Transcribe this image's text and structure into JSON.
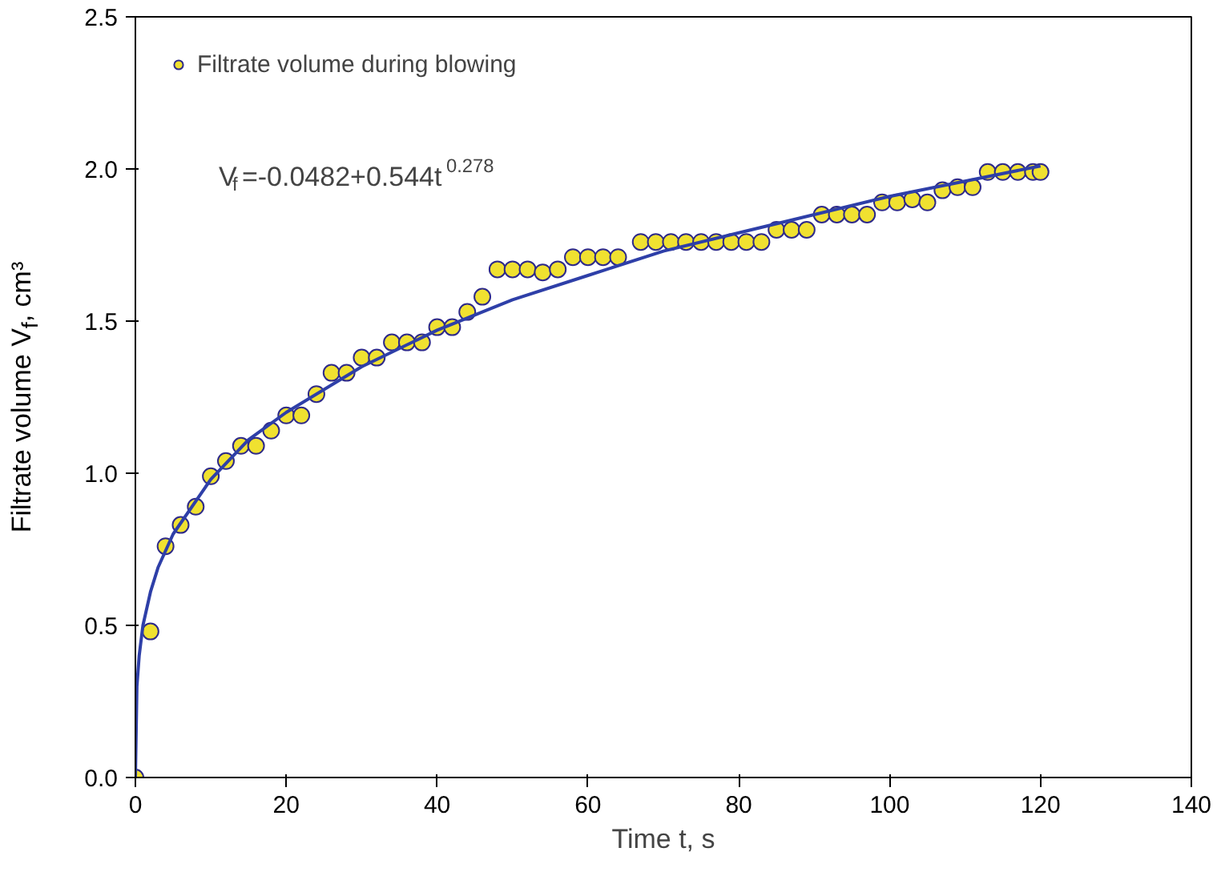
{
  "chart_data": {
    "type": "scatter",
    "xlabel": "Time t, s",
    "ylabel": "Filtrate volume V$_{f}$, cm³",
    "xlim": [
      0,
      140
    ],
    "ylim": [
      0,
      2.5
    ],
    "xticks": [
      0,
      20,
      40,
      60,
      80,
      100,
      120,
      140
    ],
    "yticks": [
      {
        "value": 0,
        "label": "0.0"
      },
      {
        "value": 0.5,
        "label": "0.5"
      },
      {
        "value": 1,
        "label": "1.0"
      },
      {
        "value": 1.5,
        "label": "1.5"
      },
      {
        "value": 2,
        "label": "2.0"
      },
      {
        "value": 2.5,
        "label": "2.5"
      }
    ],
    "grid": false,
    "legend": "top left",
    "marker": "circle",
    "annotations": [
      "V$_{f}$=-0.0482+0.544t$^{0.278}$"
    ],
    "series": [
      {
        "name": "Filtrate volume during blowing",
        "color": "#f0e130",
        "x": [
          0,
          2,
          4,
          6,
          8,
          10,
          12,
          14,
          16,
          18,
          20,
          22,
          24,
          26,
          28,
          30,
          32,
          34,
          36,
          38,
          40,
          42,
          44,
          46,
          48,
          50,
          52,
          54,
          56,
          58,
          60,
          62,
          64,
          67,
          69,
          71,
          73,
          75,
          77,
          79,
          81,
          83,
          85,
          87,
          89,
          91,
          93,
          95,
          97,
          99,
          101,
          103,
          105,
          107,
          109,
          111,
          113,
          115,
          117,
          119,
          120
        ],
        "values": [
          0,
          0.48,
          0.76,
          0.83,
          0.89,
          0.99,
          1.04,
          1.09,
          1.09,
          1.14,
          1.19,
          1.19,
          1.26,
          1.33,
          1.33,
          1.38,
          1.38,
          1.43,
          1.43,
          1.43,
          1.48,
          1.48,
          1.53,
          1.58,
          1.67,
          1.67,
          1.67,
          1.66,
          1.67,
          1.71,
          1.71,
          1.71,
          1.71,
          1.76,
          1.76,
          1.76,
          1.76,
          1.76,
          1.76,
          1.76,
          1.76,
          1.76,
          1.8,
          1.8,
          1.8,
          1.85,
          1.85,
          1.85,
          1.85,
          1.89,
          1.89,
          1.9,
          1.89,
          1.93,
          1.94,
          1.94,
          1.99,
          1.99,
          1.99,
          1.99,
          1.99
        ]
      },
      {
        "type": "line",
        "color": "#2e3fa8",
        "marker": "none",
        "x": [
          0,
          0.2,
          0.5,
          1,
          2,
          3,
          5,
          10,
          15,
          20,
          30,
          40,
          50,
          60,
          70,
          80,
          90,
          100,
          110,
          120
        ],
        "values": [
          0,
          0.3,
          0.4,
          0.5,
          0.61,
          0.69,
          0.8,
          0.98,
          1.11,
          1.2,
          1.35,
          1.47,
          1.57,
          1.65,
          1.73,
          1.79,
          1.85,
          1.91,
          1.96,
          2.01
        ]
      }
    ]
  }
}
